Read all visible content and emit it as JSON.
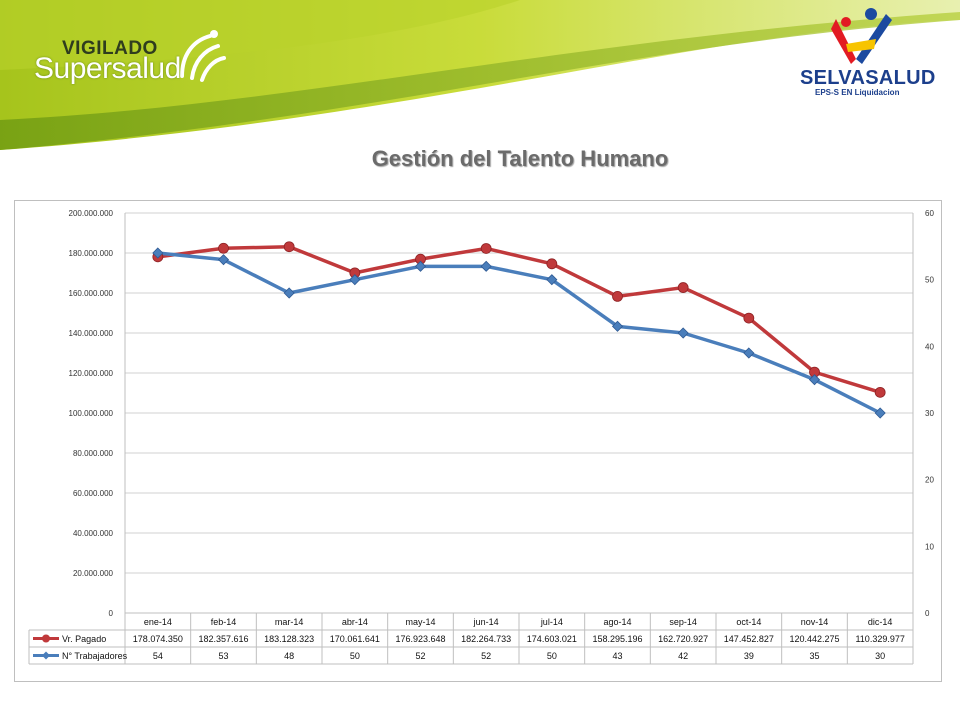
{
  "header": {
    "left_logo": {
      "line1": "VIGILADO",
      "line2": "Supersalud"
    },
    "right_logo": {
      "name": "SELVASALUD",
      "subtitle": "EPS-S EN Liquidacion"
    }
  },
  "title": "Gestión del Talento Humano",
  "colors": {
    "series1": "#c0393b",
    "series2": "#4a7ebb",
    "header_green": "#9cc11a"
  },
  "chart_data": {
    "type": "line",
    "title": "Gestión del Talento Humano",
    "categories": [
      "ene-14",
      "feb-14",
      "mar-14",
      "abr-14",
      "may-14",
      "jun-14",
      "jul-14",
      "ago-14",
      "sep-14",
      "oct-14",
      "nov-14",
      "dic-14"
    ],
    "y_left": {
      "min": 0,
      "max": 200000000,
      "step": 20000000,
      "tick_labels": [
        "0",
        "20.000.000",
        "40.000.000",
        "60.000.000",
        "80.000.000",
        "100.000.000",
        "120.000.000",
        "140.000.000",
        "160.000.000",
        "180.000.000",
        "200.000.000"
      ]
    },
    "y_right": {
      "min": 0,
      "max": 60,
      "step": 10,
      "tick_labels": [
        "0",
        "10",
        "20",
        "30",
        "40",
        "50",
        "60"
      ]
    },
    "grid": true,
    "series": [
      {
        "name": "Vr. Pagado",
        "axis": "left",
        "marker": "circle",
        "values": [
          178074350,
          182357616,
          183128323,
          170061641,
          176923648,
          182264733,
          174603021,
          158295196,
          162720927,
          147452827,
          120442275,
          110329977
        ],
        "labels": [
          "178.074.350",
          "182.357.616",
          "183.128.323",
          "170.061.641",
          "176.923.648",
          "182.264.733",
          "174.603.021",
          "158.295.196",
          "162.720.927",
          "147.452.827",
          "120.442.275",
          "110.329.977"
        ]
      },
      {
        "name": "N° Trabajadores",
        "axis": "right",
        "marker": "diamond",
        "values": [
          54,
          53,
          48,
          50,
          52,
          52,
          50,
          43,
          42,
          39,
          35,
          30
        ],
        "labels": [
          "54",
          "53",
          "48",
          "50",
          "52",
          "52",
          "50",
          "43",
          "42",
          "39",
          "35",
          "30"
        ]
      }
    ]
  }
}
